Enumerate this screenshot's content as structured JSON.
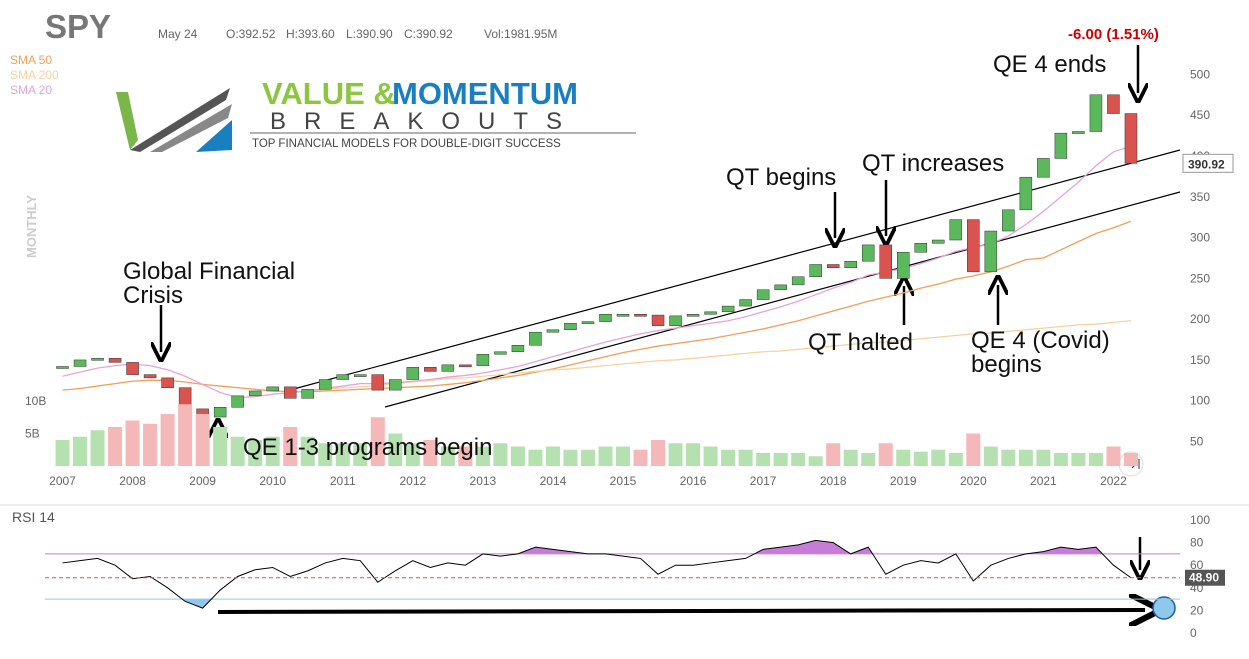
{
  "header": {
    "ticker": "SPY",
    "date": "May 24",
    "open": "O:392.52",
    "high": "H:393.60",
    "low": "L:390.90",
    "close": "C:390.92",
    "volume": "Vol:1981.95M",
    "change": "-6.00 (1.51%)",
    "period": "MONTHLY",
    "price_tag": "390.92"
  },
  "logo": {
    "word1": "VALUE &",
    "word2": "MOMENTUM",
    "word3": "BREAKOUTS",
    "tagline": "TOP FINANCIAL MODELS FOR DOUBLE-DIGIT SUCCESS"
  },
  "annotations": [
    [
      "Global Financial",
      "Crisis"
    ],
    [
      "QE 1-3 programs begin"
    ],
    [
      "QT begins"
    ],
    [
      "QT increases"
    ],
    [
      "QT halted"
    ],
    [
      "QE 4 (Covid)",
      "begins"
    ],
    [
      "QE 4 ends"
    ]
  ],
  "chart_data": [
    {
      "type": "candle",
      "up_color": "#5cb85c",
      "down_color": "#d9534f",
      "x": [
        2007,
        2007.25,
        2007.5,
        2007.75,
        2008,
        2008.25,
        2008.5,
        2008.75,
        2009,
        2009.25,
        2009.5,
        2009.75,
        2010,
        2010.25,
        2010.5,
        2010.75,
        2011,
        2011.25,
        2011.5,
        2011.75,
        2012,
        2012.25,
        2012.5,
        2012.75,
        2013,
        2013.25,
        2013.5,
        2013.75,
        2014,
        2014.25,
        2014.5,
        2014.75,
        2015,
        2015.25,
        2015.5,
        2015.75,
        2016,
        2016.25,
        2016.5,
        2016.75,
        2017,
        2017.25,
        2017.5,
        2017.75,
        2018,
        2018.25,
        2018.5,
        2018.75,
        2019,
        2019.25,
        2019.5,
        2019.75,
        2020,
        2020.25,
        2020.5,
        2020.75,
        2021,
        2021.25,
        2021.5,
        2021.75,
        2022,
        2022.25
      ],
      "close": [
        142,
        150,
        152,
        147,
        132,
        128,
        116,
        90,
        80,
        92,
        106,
        112,
        117,
        103,
        114,
        126,
        132,
        132,
        113,
        126,
        141,
        136,
        144,
        143,
        157,
        160,
        168,
        184,
        187,
        195,
        197,
        206,
        206,
        205,
        192,
        204,
        206,
        209,
        216,
        224,
        236,
        242,
        252,
        267,
        263,
        271,
        291,
        250,
        282,
        293,
        297,
        322,
        258,
        308,
        334,
        374,
        397,
        428,
        430,
        475,
        452,
        391
      ],
      "series": [
        {
          "name": "SMA 50",
          "color": "#f0a05a",
          "values": [
            113,
            115,
            118,
            121,
            124,
            125,
            125,
            123,
            120,
            118,
            116,
            114,
            112,
            111,
            111,
            112,
            113,
            114,
            115,
            116,
            117,
            118,
            120,
            122,
            125,
            128,
            131,
            135,
            139,
            144,
            149,
            154,
            159,
            163,
            167,
            170,
            173,
            176,
            180,
            184,
            188,
            193,
            198,
            204,
            210,
            216,
            222,
            227,
            232,
            238,
            243,
            249,
            253,
            258,
            265,
            273,
            275,
            285,
            295,
            305,
            312,
            320
          ]
        },
        {
          "name": "SMA 200",
          "color": "#f5d3a0",
          "values": [
            null,
            null,
            null,
            null,
            null,
            null,
            null,
            null,
            null,
            null,
            null,
            null,
            null,
            null,
            112,
            114,
            116,
            117,
            119,
            121,
            123,
            125,
            127,
            128,
            130,
            132,
            134,
            136,
            138,
            139,
            141,
            143,
            145,
            147,
            149,
            150,
            152,
            154,
            156,
            158,
            160,
            161,
            163,
            165,
            167,
            169,
            171,
            172,
            174,
            176,
            178,
            180,
            182,
            183,
            185,
            187,
            189,
            191,
            193,
            194,
            196,
            198
          ]
        },
        {
          "name": "SMA 20",
          "color": "#e6a3d9",
          "values": [
            130,
            135,
            140,
            143,
            145,
            143,
            138,
            130,
            120,
            110,
            104,
            105,
            108,
            110,
            112,
            115,
            118,
            121,
            121,
            122,
            124,
            126,
            129,
            131,
            134,
            138,
            142,
            148,
            154,
            160,
            166,
            172,
            177,
            182,
            186,
            189,
            192,
            195,
            198,
            203,
            209,
            215,
            222,
            230,
            238,
            245,
            254,
            258,
            262,
            268,
            275,
            283,
            288,
            292,
            302,
            316,
            332,
            350,
            368,
            388,
            405,
            412
          ]
        }
      ],
      "xlim": [
        2006.75,
        2022.95
      ],
      "xticks": [
        2007,
        2008,
        2009,
        2010,
        2011,
        2012,
        2013,
        2014,
        2015,
        2016,
        2017,
        2018,
        2019,
        2020,
        2021,
        2022
      ],
      "ylim": [
        20,
        525
      ],
      "yticks": [
        50,
        100,
        150,
        200,
        250,
        300,
        350,
        400,
        450,
        500
      ]
    },
    {
      "type": "volume",
      "up_color": "#b5e0b0",
      "down_color": "#f4b8b8",
      "values": [
        4,
        4.5,
        5.5,
        6,
        7,
        6.5,
        8,
        9.5,
        8,
        6,
        4.5,
        4,
        4.5,
        6,
        4.5,
        3.5,
        3.5,
        3.5,
        7.5,
        5,
        3.5,
        4,
        3,
        3,
        3,
        3.5,
        3,
        2.5,
        3,
        2.5,
        2.5,
        3,
        3,
        2.5,
        4,
        3.5,
        3.5,
        3,
        2.5,
        2.5,
        2,
        2,
        2,
        1.5,
        3.5,
        2.5,
        2,
        3.5,
        2.5,
        2.2,
        2.5,
        2,
        5,
        3,
        2.5,
        2.5,
        2.5,
        2,
        2,
        2,
        3,
        2
      ],
      "ylim": [
        0,
        10
      ],
      "yticks": [
        {
          "value": 5,
          "label": "5B"
        },
        {
          "value": 10,
          "label": "10B"
        }
      ]
    },
    {
      "type": "rsi",
      "title": "RSI 14",
      "color": "#000000",
      "fill_high": "#c77dd8",
      "fill_low": "#8ec9ec",
      "levels": [
        70,
        30
      ],
      "current_tag": "48.90",
      "values": [
        62,
        64,
        66,
        60,
        48,
        50,
        40,
        28,
        22,
        38,
        50,
        56,
        58,
        50,
        55,
        62,
        66,
        64,
        45,
        55,
        64,
        58,
        62,
        60,
        70,
        68,
        70,
        76,
        74,
        72,
        70,
        70,
        68,
        66,
        52,
        60,
        60,
        62,
        64,
        66,
        74,
        76,
        78,
        82,
        80,
        70,
        76,
        52,
        60,
        64,
        62,
        70,
        46,
        60,
        66,
        70,
        72,
        76,
        74,
        76,
        60,
        48.9
      ],
      "ylim": [
        0,
        100
      ],
      "yticks": [
        0,
        20,
        40,
        60,
        80,
        100
      ]
    }
  ]
}
